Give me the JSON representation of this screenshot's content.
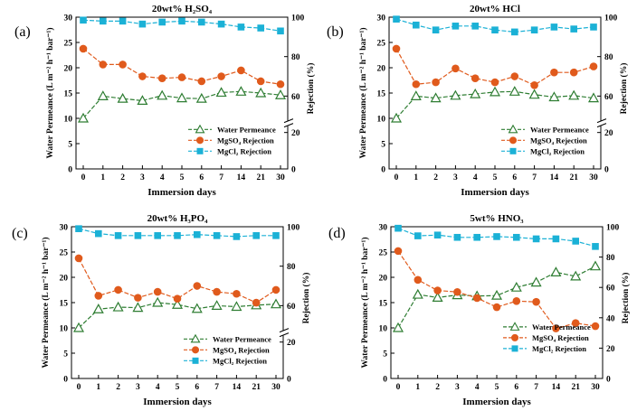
{
  "chart_data": [
    {
      "type": "line",
      "panel_label": "(a)",
      "title": "20wt% H₂SO₄",
      "xlabel": "Immersion days",
      "ylabel": "Water Permeance (L m⁻² h⁻¹ bar⁻¹)",
      "y2label": "Rejection (%)",
      "categories": [
        "0",
        "1",
        "2",
        "3",
        "4",
        "5",
        "6",
        "7",
        "14",
        "21",
        "30"
      ],
      "ylim": [
        0,
        30
      ],
      "yticks": [
        0,
        5,
        10,
        15,
        20,
        25,
        30
      ],
      "y2_upper": [
        60,
        100
      ],
      "y2_upper_ticks": [
        60,
        80,
        100
      ],
      "y2_lower": [
        0,
        20
      ],
      "y2_lower_ticks": [
        0,
        20
      ],
      "series": [
        {
          "name": "Water Permeance",
          "axis": "left",
          "values": [
            10.0,
            14.4,
            13.9,
            13.5,
            14.5,
            14.0,
            13.9,
            15.1,
            15.3,
            15.0,
            14.6
          ]
        },
        {
          "name": "MgSO₄ Rejection",
          "axis": "right",
          "values": [
            84,
            76,
            76,
            70,
            69,
            69.5,
            67.5,
            70,
            73,
            67.5,
            66
          ]
        },
        {
          "name": "MgCl₂ Rejection",
          "axis": "right",
          "values": [
            98.5,
            98,
            98,
            96.5,
            97.5,
            98,
            97.5,
            96.5,
            95,
            94.5,
            93
          ]
        }
      ]
    },
    {
      "type": "line",
      "panel_label": "(b)",
      "title": "20wt% HCl",
      "xlabel": "Immersion days",
      "ylabel": "Water Permeance (L m⁻² h⁻¹ bar⁻¹)",
      "y2label": "Rejection (%)",
      "categories": [
        "0",
        "1",
        "2",
        "3",
        "4",
        "5",
        "6",
        "7",
        "14",
        "21",
        "30"
      ],
      "ylim": [
        0,
        30
      ],
      "yticks": [
        0,
        5,
        10,
        15,
        20,
        25,
        30
      ],
      "y2_upper": [
        60,
        100
      ],
      "y2_upper_ticks": [
        60,
        80,
        100
      ],
      "y2_lower": [
        0,
        20
      ],
      "y2_lower_ticks": [
        0,
        20
      ],
      "series": [
        {
          "name": "Water Permeance",
          "axis": "left",
          "values": [
            10.0,
            14.4,
            14.0,
            14.5,
            14.8,
            15.2,
            15.3,
            14.7,
            14.2,
            14.5,
            14.0
          ]
        },
        {
          "name": "MgSO₄ Rejection",
          "axis": "right",
          "values": [
            84,
            66,
            67,
            74,
            69,
            67,
            70,
            65.5,
            72,
            72,
            75
          ]
        },
        {
          "name": "MgCl₂ Rejection",
          "axis": "right",
          "values": [
            99,
            96,
            93.5,
            95.5,
            95.5,
            93.5,
            92.5,
            93.5,
            95,
            94,
            95
          ]
        }
      ]
    },
    {
      "type": "line",
      "panel_label": "(c)",
      "title": "20wt% H₃PO₄",
      "xlabel": "Immersion days",
      "ylabel": "Water Permeance (L m⁻² h⁻¹ bar⁻¹)",
      "y2label": "Rejection (%)",
      "categories": [
        "0",
        "1",
        "2",
        "3",
        "4",
        "5",
        "6",
        "7",
        "14",
        "21",
        "30"
      ],
      "ylim": [
        0,
        30
      ],
      "yticks": [
        0,
        5,
        10,
        15,
        20,
        25,
        30
      ],
      "y2_upper": [
        60,
        100
      ],
      "y2_upper_ticks": [
        60,
        80,
        100
      ],
      "y2_lower": [
        0,
        20
      ],
      "y2_lower_ticks": [
        0,
        20
      ],
      "series": [
        {
          "name": "Water Permeance",
          "axis": "left",
          "values": [
            10.0,
            13.7,
            14.1,
            14.0,
            15.0,
            14.6,
            13.8,
            14.4,
            14.2,
            14.5,
            14.7
          ]
        },
        {
          "name": "MgSO₄ Rejection",
          "axis": "right",
          "values": [
            84,
            65,
            68,
            64,
            67,
            63.5,
            70,
            67,
            66,
            61.5,
            68
          ]
        },
        {
          "name": "MgCl₂ Rejection",
          "axis": "right",
          "values": [
            99,
            96.5,
            95.5,
            95.5,
            95.5,
            95.5,
            96,
            95.5,
            95,
            95.5,
            95.5
          ]
        }
      ]
    },
    {
      "type": "line",
      "panel_label": "(d)",
      "title": "5wt% HNO₃",
      "xlabel": "Immersion days",
      "ylabel": "Water Permeance (L m⁻² h⁻¹ bar⁻¹)",
      "y2label": "Rejection (%)",
      "categories": [
        "0",
        "1",
        "2",
        "3",
        "4",
        "5",
        "6",
        "7",
        "14",
        "21",
        "30"
      ],
      "ylim": [
        0,
        30
      ],
      "yticks": [
        0,
        5,
        10,
        15,
        20,
        25,
        30
      ],
      "y2_upper": [
        0,
        100
      ],
      "y2_upper_ticks": [
        0,
        20,
        40,
        60,
        80,
        100
      ],
      "y2_lower": null,
      "y2_lower_ticks": [],
      "series": [
        {
          "name": "Water Permeance",
          "axis": "left",
          "values": [
            10.0,
            16.6,
            16.0,
            16.5,
            16.3,
            16.4,
            18.0,
            19.0,
            21.0,
            20.2,
            22.2
          ]
        },
        {
          "name": "MgSO₄ Rejection",
          "axis": "right",
          "values": [
            84,
            65,
            58,
            57,
            53,
            47,
            51,
            50.5,
            33,
            36.5,
            34.5
          ]
        },
        {
          "name": "MgCl₂ Rejection",
          "axis": "right",
          "values": [
            99,
            94,
            94.5,
            93,
            93,
            93.5,
            93,
            92,
            92,
            90.5,
            87
          ]
        }
      ]
    }
  ],
  "style": {
    "permeance_color": "#2e7d32",
    "mgso4_color": "#e05a1c",
    "mgcl2_color": "#1bb1d6"
  }
}
